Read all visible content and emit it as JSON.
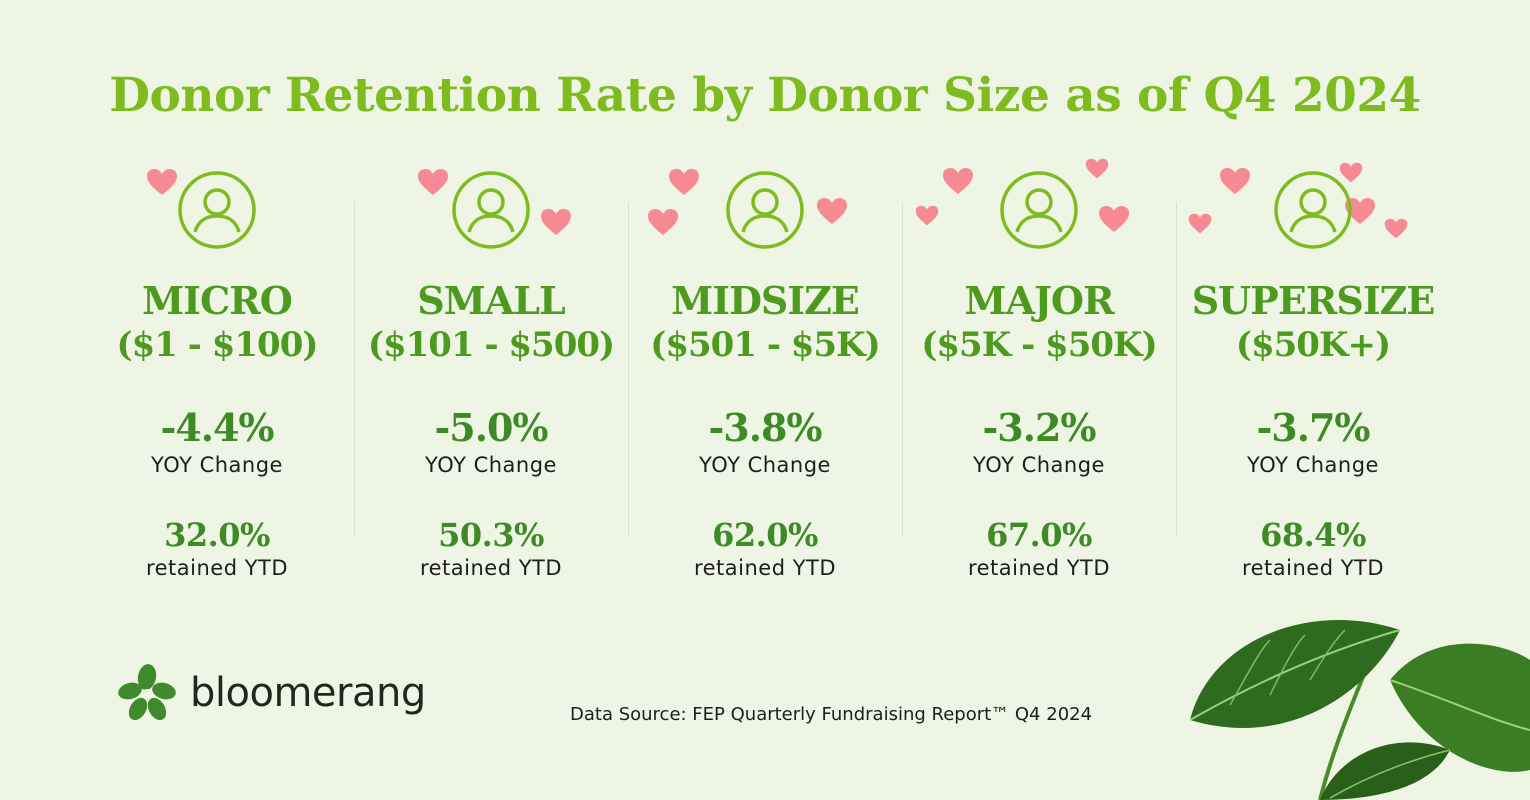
{
  "title": "Donor Retention Rate by Donor Size as of Q4 2024",
  "tiers": [
    {
      "name": "MICRO",
      "range": "($1 - $100)",
      "yoy": "-4.4%",
      "yoy_label": "YOY Change",
      "retained": "32.0%",
      "retained_label": "retained YTD"
    },
    {
      "name": "SMALL",
      "range": "($101 - $500)",
      "yoy": "-5.0%",
      "yoy_label": "YOY Change",
      "retained": "50.3%",
      "retained_label": "retained YTD"
    },
    {
      "name": "MIDSIZE",
      "range": "($501 - $5K)",
      "yoy": "-3.8%",
      "yoy_label": "YOY Change",
      "retained": "62.0%",
      "retained_label": "retained YTD"
    },
    {
      "name": "MAJOR",
      "range": "($5K - $50K)",
      "yoy": "-3.2%",
      "yoy_label": "YOY Change",
      "retained": "67.0%",
      "retained_label": "retained YTD"
    },
    {
      "name": "SUPERSIZE",
      "range": "($50K+)",
      "yoy": "-3.7%",
      "yoy_label": "YOY Change",
      "retained": "68.4%",
      "retained_label": "retained YTD"
    }
  ],
  "brand": {
    "logo_text": "bloomerang"
  },
  "source": "Data Source: FEP Quarterly Fundraising Report™ Q4 2024",
  "colors": {
    "background": "#eef5e4",
    "title": "#7dbb1f",
    "tier_text": "#4d9a1f",
    "value_text": "#3d8a26",
    "heart": "#f58a95",
    "icon": "#7dbb1f"
  },
  "icons": {
    "avatar": "user-circle-icon",
    "decor": "heart-icon",
    "logo": "bloomerang-flower-icon",
    "plant": "leaf-decoration"
  }
}
